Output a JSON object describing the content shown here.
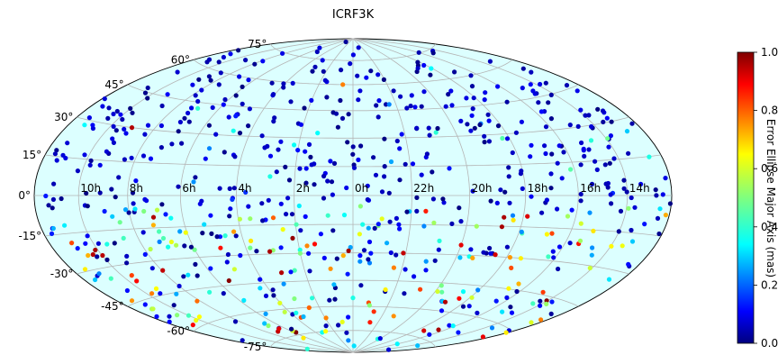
{
  "chart_data": {
    "type": "scatter",
    "title": "ICRF3K",
    "projection": "Aitoff/Hammer all-sky (RA increases to the left)",
    "x_label_unit": "right ascension (hours)",
    "y_label_unit": "declination (degrees)",
    "ra_tick_labels": [
      "14h",
      "16h",
      "18h",
      "20h",
      "22h",
      "0h",
      "2h",
      "4h",
      "6h",
      "8h",
      "10h"
    ],
    "dec_tick_labels": [
      "75°",
      "60°",
      "45°",
      "30°",
      "15°",
      "0°",
      "-15°",
      "-30°",
      "-45°",
      "-60°",
      "-75°"
    ],
    "grid": true,
    "background_color": "#dcffff",
    "colorbar": {
      "label": "Error Ellipse Major Axis (mas)",
      "range": [
        0.0,
        1.0
      ],
      "tick_labels": [
        "0.0",
        "0.2",
        "0.4",
        "0.6",
        "0.8",
        "1.0"
      ],
      "colormap": "jet"
    },
    "approximate_note_points": [
      {
        "ra_h": 9.0,
        "dec_deg": 30,
        "value": 0.95
      },
      {
        "ra_h": 20.0,
        "dec_deg": -25,
        "value": 0.9
      },
      {
        "ra_h": 21.5,
        "dec_deg": -8,
        "value": 0.85
      },
      {
        "ra_h": 3.0,
        "dec_deg": -40,
        "value": 0.95
      },
      {
        "ra_h": 6.5,
        "dec_deg": -70,
        "value": 0.9
      },
      {
        "ra_h": 17.5,
        "dec_deg": -35,
        "value": 0.8
      },
      {
        "ra_h": 0.6,
        "dec_deg": 60,
        "value": 0.75
      },
      {
        "ra_h": 23.0,
        "dec_deg": -12,
        "value": 0.6
      },
      {
        "ra_h": 19.0,
        "dec_deg": -55,
        "value": 0.95
      },
      {
        "ra_h": 16.5,
        "dec_deg": -42,
        "value": 0.7
      },
      {
        "ra_h": 0.0,
        "dec_deg": -55,
        "value": 0.4
      },
      {
        "ra_h": 1.0,
        "dec_deg": 10,
        "value": 0.05
      },
      {
        "ra_h": 23.5,
        "dec_deg": 5,
        "value": 0.1
      },
      {
        "ra_h": 5.0,
        "dec_deg": 40,
        "value": 0.15
      },
      {
        "ra_h": 15.0,
        "dec_deg": 50,
        "value": 0.1
      },
      {
        "ra_h": 12.5,
        "dec_deg": -5,
        "value": 0.35
      },
      {
        "ra_h": 7.0,
        "dec_deg": -20,
        "value": 0.45
      },
      {
        "ra_h": 2.0,
        "dec_deg": -30,
        "value": 0.5
      }
    ]
  }
}
